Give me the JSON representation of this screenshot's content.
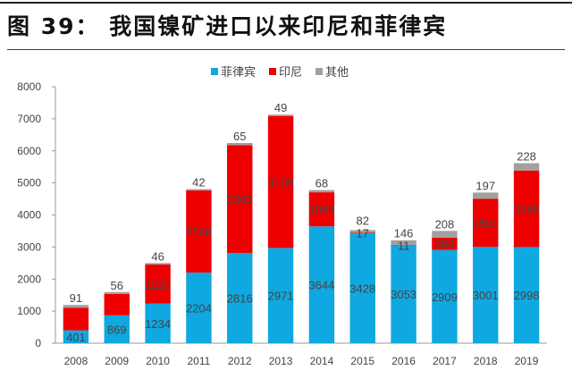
{
  "title": "图 39： 我国镍矿进口以来印尼和菲律宾",
  "chart_data": {
    "type": "bar",
    "stacked": true,
    "categories": [
      "2008",
      "2009",
      "2010",
      "2011",
      "2012",
      "2013",
      "2014",
      "2015",
      "2016",
      "2017",
      "2018",
      "2019"
    ],
    "series": [
      {
        "name": "菲律宾",
        "color": "#0fa8e0",
        "values": [
          401,
          869,
          1234,
          2204,
          2816,
          2971,
          3644,
          3428,
          3053,
          2909,
          3001,
          2998
        ],
        "labels_shown": true
      },
      {
        "name": "印尼",
        "color": "#ee0000",
        "values": [
          700,
          670,
          1220,
          2560,
          3363,
          4109,
          1064,
          17,
          11,
          386,
          1501,
          2388
        ],
        "labels_shown": [
          false,
          false,
          true,
          true,
          true,
          true,
          true,
          true,
          true,
          true,
          true,
          true
        ]
      },
      {
        "name": "其他",
        "color": "#a0a0a0",
        "values": [
          91,
          56,
          46,
          42,
          65,
          49,
          68,
          82,
          146,
          208,
          197,
          228
        ],
        "labels_shown": true
      }
    ],
    "ylim": [
      0,
      8000
    ],
    "yticks": [
      0,
      1000,
      2000,
      3000,
      4000,
      5000,
      6000,
      7000,
      8000
    ],
    "legend": "top",
    "grid": false
  }
}
